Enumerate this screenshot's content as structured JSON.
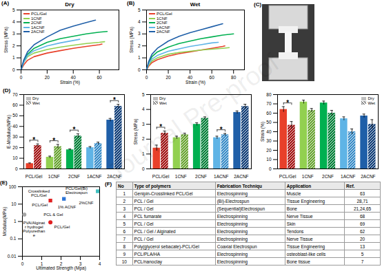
{
  "watermark": "Journal Pre-proof",
  "photo": {
    "panel_label": "(C)"
  },
  "chart_data": [
    {
      "type": "line",
      "panel_label": "(A)",
      "title": "Dry",
      "x_label": "Strain (%)",
      "y_label": "Stress (MPa)",
      "xlim": [
        0,
        75
      ],
      "xticks": [
        0,
        20,
        40,
        60
      ],
      "ylim": [
        0,
        5
      ],
      "yticks": [
        0,
        1,
        2,
        3,
        4,
        5
      ],
      "legend": "upper left",
      "series": [
        {
          "name": "PCL/Gel",
          "color": "#e8402a",
          "x": [
            0,
            2,
            5,
            10,
            20,
            30,
            40,
            50,
            60,
            62
          ],
          "values": [
            0,
            0.4,
            0.8,
            1.1,
            1.4,
            1.6,
            1.8,
            1.95,
            2.1,
            2.15
          ]
        },
        {
          "name": "1CNF",
          "color": "#92d050",
          "x": [
            0,
            2,
            5,
            10,
            20,
            30,
            40,
            50,
            60,
            64
          ],
          "values": [
            0,
            0.6,
            1.1,
            1.4,
            1.7,
            1.9,
            2.05,
            2.2,
            2.3,
            2.35
          ]
        },
        {
          "name": "2CNF",
          "color": "#00b050",
          "x": [
            0,
            2,
            5,
            10,
            20,
            30,
            40,
            50,
            60,
            66
          ],
          "values": [
            0,
            0.7,
            1.3,
            1.8,
            2.3,
            2.6,
            2.8,
            3.0,
            3.15,
            3.2
          ]
        },
        {
          "name": "1ACNF",
          "color": "#5fb4e6",
          "x": [
            0,
            2,
            5,
            10,
            20,
            30,
            40,
            45
          ],
          "values": [
            0,
            0.6,
            1.2,
            1.6,
            2.0,
            2.25,
            2.45,
            2.55
          ]
        },
        {
          "name": "2ACNF",
          "color": "#1f5fa8",
          "x": [
            0,
            2,
            5,
            10,
            20,
            30,
            40,
            50,
            57
          ],
          "values": [
            0,
            0.8,
            1.5,
            2.1,
            2.75,
            3.3,
            3.65,
            3.95,
            4.15
          ]
        }
      ]
    },
    {
      "type": "line",
      "panel_label": "(B)",
      "title": "Wet",
      "x_label": "Strain (%)",
      "y_label": "Stress (MPa)",
      "xlim": [
        0,
        90
      ],
      "xticks": [
        0,
        20,
        40,
        60,
        80
      ],
      "ylim": [
        0,
        5
      ],
      "yticks": [
        0,
        1,
        2,
        3,
        4,
        5
      ],
      "legend": "upper left",
      "series": [
        {
          "name": "PCL/Gel",
          "color": "#e8402a",
          "x": [
            0,
            2,
            5,
            10,
            20,
            30,
            40,
            50,
            60,
            70,
            72
          ],
          "values": [
            0,
            0.3,
            0.6,
            0.85,
            1.15,
            1.35,
            1.5,
            1.65,
            1.8,
            1.95,
            2.0
          ]
        },
        {
          "name": "1CNF",
          "color": "#92d050",
          "x": [
            0,
            2,
            5,
            10,
            20,
            30,
            40,
            50,
            60,
            70,
            76
          ],
          "values": [
            0,
            0.4,
            0.75,
            1.0,
            1.3,
            1.45,
            1.55,
            1.65,
            1.72,
            1.8,
            1.85
          ]
        },
        {
          "name": "2CNF",
          "color": "#00b050",
          "x": [
            0,
            2,
            5,
            10,
            20,
            30,
            40,
            50,
            60,
            70,
            80
          ],
          "values": [
            0,
            0.6,
            1.1,
            1.5,
            1.9,
            2.2,
            2.4,
            2.6,
            2.75,
            2.9,
            3.0
          ]
        },
        {
          "name": "1ACNF",
          "color": "#5fb4e6",
          "x": [
            0,
            2,
            5,
            10,
            20,
            30,
            40,
            50,
            60,
            66
          ],
          "values": [
            0,
            0.5,
            0.9,
            1.2,
            1.55,
            1.75,
            1.95,
            2.1,
            2.25,
            2.3
          ]
        },
        {
          "name": "2ACNF",
          "color": "#1f5fa8",
          "x": [
            0,
            2,
            5,
            10,
            20,
            30,
            40,
            50,
            60,
            70
          ],
          "values": [
            0,
            0.7,
            1.3,
            1.8,
            2.4,
            2.8,
            3.1,
            3.35,
            3.6,
            3.85
          ]
        }
      ]
    },
    {
      "type": "bar",
      "panel_label": "(D)",
      "y_label": "E-Modulus(MPa)",
      "categories": [
        "PCL/Gel",
        "1CNF",
        "2CNF",
        "1ACNF",
        "2ACNF"
      ],
      "ylim": [
        0,
        70
      ],
      "yticks": [
        0,
        10,
        20,
        30,
        40,
        50,
        60,
        70
      ],
      "legend": "upper left",
      "series": [
        {
          "name": "Dry",
          "color": "#bfbfbf",
          "colors": [
            "#e8402a",
            "#92d050",
            "#00b050",
            "#5fb4e6",
            "#1f5fa8"
          ],
          "values": [
            5,
            11,
            18,
            20,
            46
          ],
          "errors": [
            0.6,
            1,
            0.8,
            1,
            1.5
          ]
        },
        {
          "name": "Wet",
          "color": "#7f7f7f",
          "colors": [
            "#a31515",
            "#6aa534",
            "#00803a",
            "#3a8dc8",
            "#123f78"
          ],
          "values": [
            22,
            21,
            31,
            24,
            59
          ],
          "errors": [
            1.5,
            2,
            2,
            1.2,
            1.8
          ]
        }
      ],
      "annotations": [
        {
          "category": "PCL/Gel",
          "text": "*"
        },
        {
          "category": "1CNF",
          "text": "*"
        },
        {
          "category": "2CNF",
          "text": "*"
        },
        {
          "category": "2ACNF",
          "text": "*"
        }
      ]
    },
    {
      "type": "bar",
      "y_label": "Stress (MPa)",
      "categories": [
        "PCL/Gel",
        "1CNF",
        "2CNF",
        "1ACNF",
        "2ACNF"
      ],
      "ylim": [
        0,
        5
      ],
      "yticks": [
        0,
        1,
        2,
        3,
        4,
        5
      ],
      "legend": "upper left",
      "series": [
        {
          "name": "Dry",
          "color": "#bfbfbf",
          "colors": [
            "#e8402a",
            "#92d050",
            "#00b050",
            "#5fb4e6",
            "#1f5fa8"
          ],
          "values": [
            1.4,
            2.1,
            3.0,
            2.1,
            3.8
          ],
          "errors": [
            0.2,
            0.1,
            0.1,
            0.1,
            0.1
          ]
        },
        {
          "name": "Wet",
          "color": "#7f7f7f",
          "colors": [
            "#a31515",
            "#6aa534",
            "#00803a",
            "#3a8dc8",
            "#123f78"
          ],
          "values": [
            2.4,
            2.3,
            3.4,
            2.3,
            4.2
          ],
          "errors": [
            0.15,
            0.1,
            0.1,
            0.08,
            0.15
          ]
        }
      ],
      "annotations": [
        {
          "category": "PCL/Gel",
          "text": "*"
        },
        {
          "category": "1ACNF",
          "text": "*"
        }
      ]
    },
    {
      "type": "bar",
      "y_label": "Strain (%)",
      "categories": [
        "PCL/Gel",
        "1CNF",
        "2CNF",
        "1ACNF",
        "2ACNF"
      ],
      "ylim": [
        0,
        80
      ],
      "yticks": [
        0,
        10,
        20,
        30,
        40,
        50,
        60,
        70,
        80
      ],
      "legend": "upper right",
      "series": [
        {
          "name": "Dry",
          "color": "#bfbfbf",
          "colors": [
            "#e8402a",
            "#92d050",
            "#00b050",
            "#5fb4e6",
            "#1f5fa8"
          ],
          "values": [
            64,
            72,
            71,
            54,
            57
          ],
          "errors": [
            3,
            2,
            2,
            2,
            2
          ]
        },
        {
          "name": "Wet",
          "color": "#7f7f7f",
          "colors": [
            "#a31515",
            "#6aa534",
            "#00803a",
            "#3a8dc8",
            "#123f78"
          ],
          "values": [
            47,
            63,
            60,
            40,
            48
          ],
          "errors": [
            4,
            2,
            3,
            3,
            5
          ]
        }
      ],
      "annotations": [
        {
          "category": "PCL/Gel",
          "text": "*"
        }
      ]
    },
    {
      "type": "scatter",
      "panel_label": "(E)",
      "x_label": "Ultimated Strength (Mpa)",
      "y_label": "Modulus(MPa)",
      "log": "y",
      "xlim": [
        0,
        4
      ],
      "xticks": [
        0,
        1,
        2,
        3,
        4
      ],
      "ylim": [
        0.01,
        100
      ],
      "yticks": [
        0.01,
        0.1,
        1,
        10,
        100
      ],
      "points": [
        {
          "x": 0.1,
          "y": 2.5,
          "color": "#a6a6a6",
          "marker": "circle"
        },
        {
          "x": 1.45,
          "y": 0.9,
          "color": "#e02020",
          "marker": "circle"
        },
        {
          "x": 1.45,
          "y": 16,
          "color": "#e02020",
          "marker": "square"
        },
        {
          "x": 2.15,
          "y": 20,
          "color": "#2e75d6",
          "marker": "square"
        },
        {
          "x": 3.9,
          "y": 55,
          "color": "#40c0c0",
          "marker": "square"
        }
      ],
      "annotations": [
        {
          "x": 0.85,
          "y": 40,
          "text": "Crosslinked\nPCL/Gel"
        },
        {
          "x": 0.9,
          "y": 9,
          "text": "PCL/Gel"
        },
        {
          "x": 2.3,
          "y": 7,
          "text": "1% ACNF"
        },
        {
          "x": 3.3,
          "y": 12,
          "text": "2%CNF"
        },
        {
          "x": 2.8,
          "y": 60,
          "text": "PCL/Gel(Bi)\nElectrospun"
        },
        {
          "x": 1.6,
          "y": 2.5,
          "text": "PCL & Gel"
        },
        {
          "x": 2.05,
          "y": 0.5,
          "text": "PCL/Gel"
        },
        {
          "x": 0.6,
          "y": 0.35,
          "text": "PVA/Alginat\nr hydrogel\nPolyurethan\ne"
        }
      ]
    }
  ],
  "table": {
    "panel_label": "(F)",
    "header": [
      "No",
      "Type of polymers",
      "Fabrication Techniqu",
      "Application",
      "Ref."
    ],
    "rows": [
      [
        1,
        "Genipin-Crosslinked PCL/Gel",
        "Electrospinning",
        "Muscle",
        63
      ],
      [
        2,
        "PCL / Gel",
        "(Bi)-Electrospun",
        "Tissue Engineering",
        "28,71"
      ],
      [
        3,
        "PCL / Gel",
        "(Sequential)Electrospun",
        "Bone",
        "21,24,65"
      ],
      [
        4,
        "PCL fumarate",
        "Electrospinning",
        "Nerve Tissue",
        68
      ],
      [
        5,
        "PCL / Gel",
        "Electrospinning",
        "Skin",
        69
      ],
      [
        6,
        "PCL / Gel / Alginated",
        "Electrospinning",
        "Tendons",
        62
      ],
      [
        7,
        "PCL / Gel",
        "Electrospinning",
        "Nerve Tissue",
        20
      ],
      [
        8,
        "Poly(glycerol sebacate)-PCL/Gel",
        "Coaxial Electrospun",
        "Tissue Engineering",
        13
      ],
      [
        9,
        "PCL/PLA/HA",
        "Electrospinning",
        "osteoblast-like cells",
        5
      ],
      [
        10,
        "PCL/nanoclay",
        "Electrospinning",
        "Bone tissue",
        7
      ]
    ]
  }
}
